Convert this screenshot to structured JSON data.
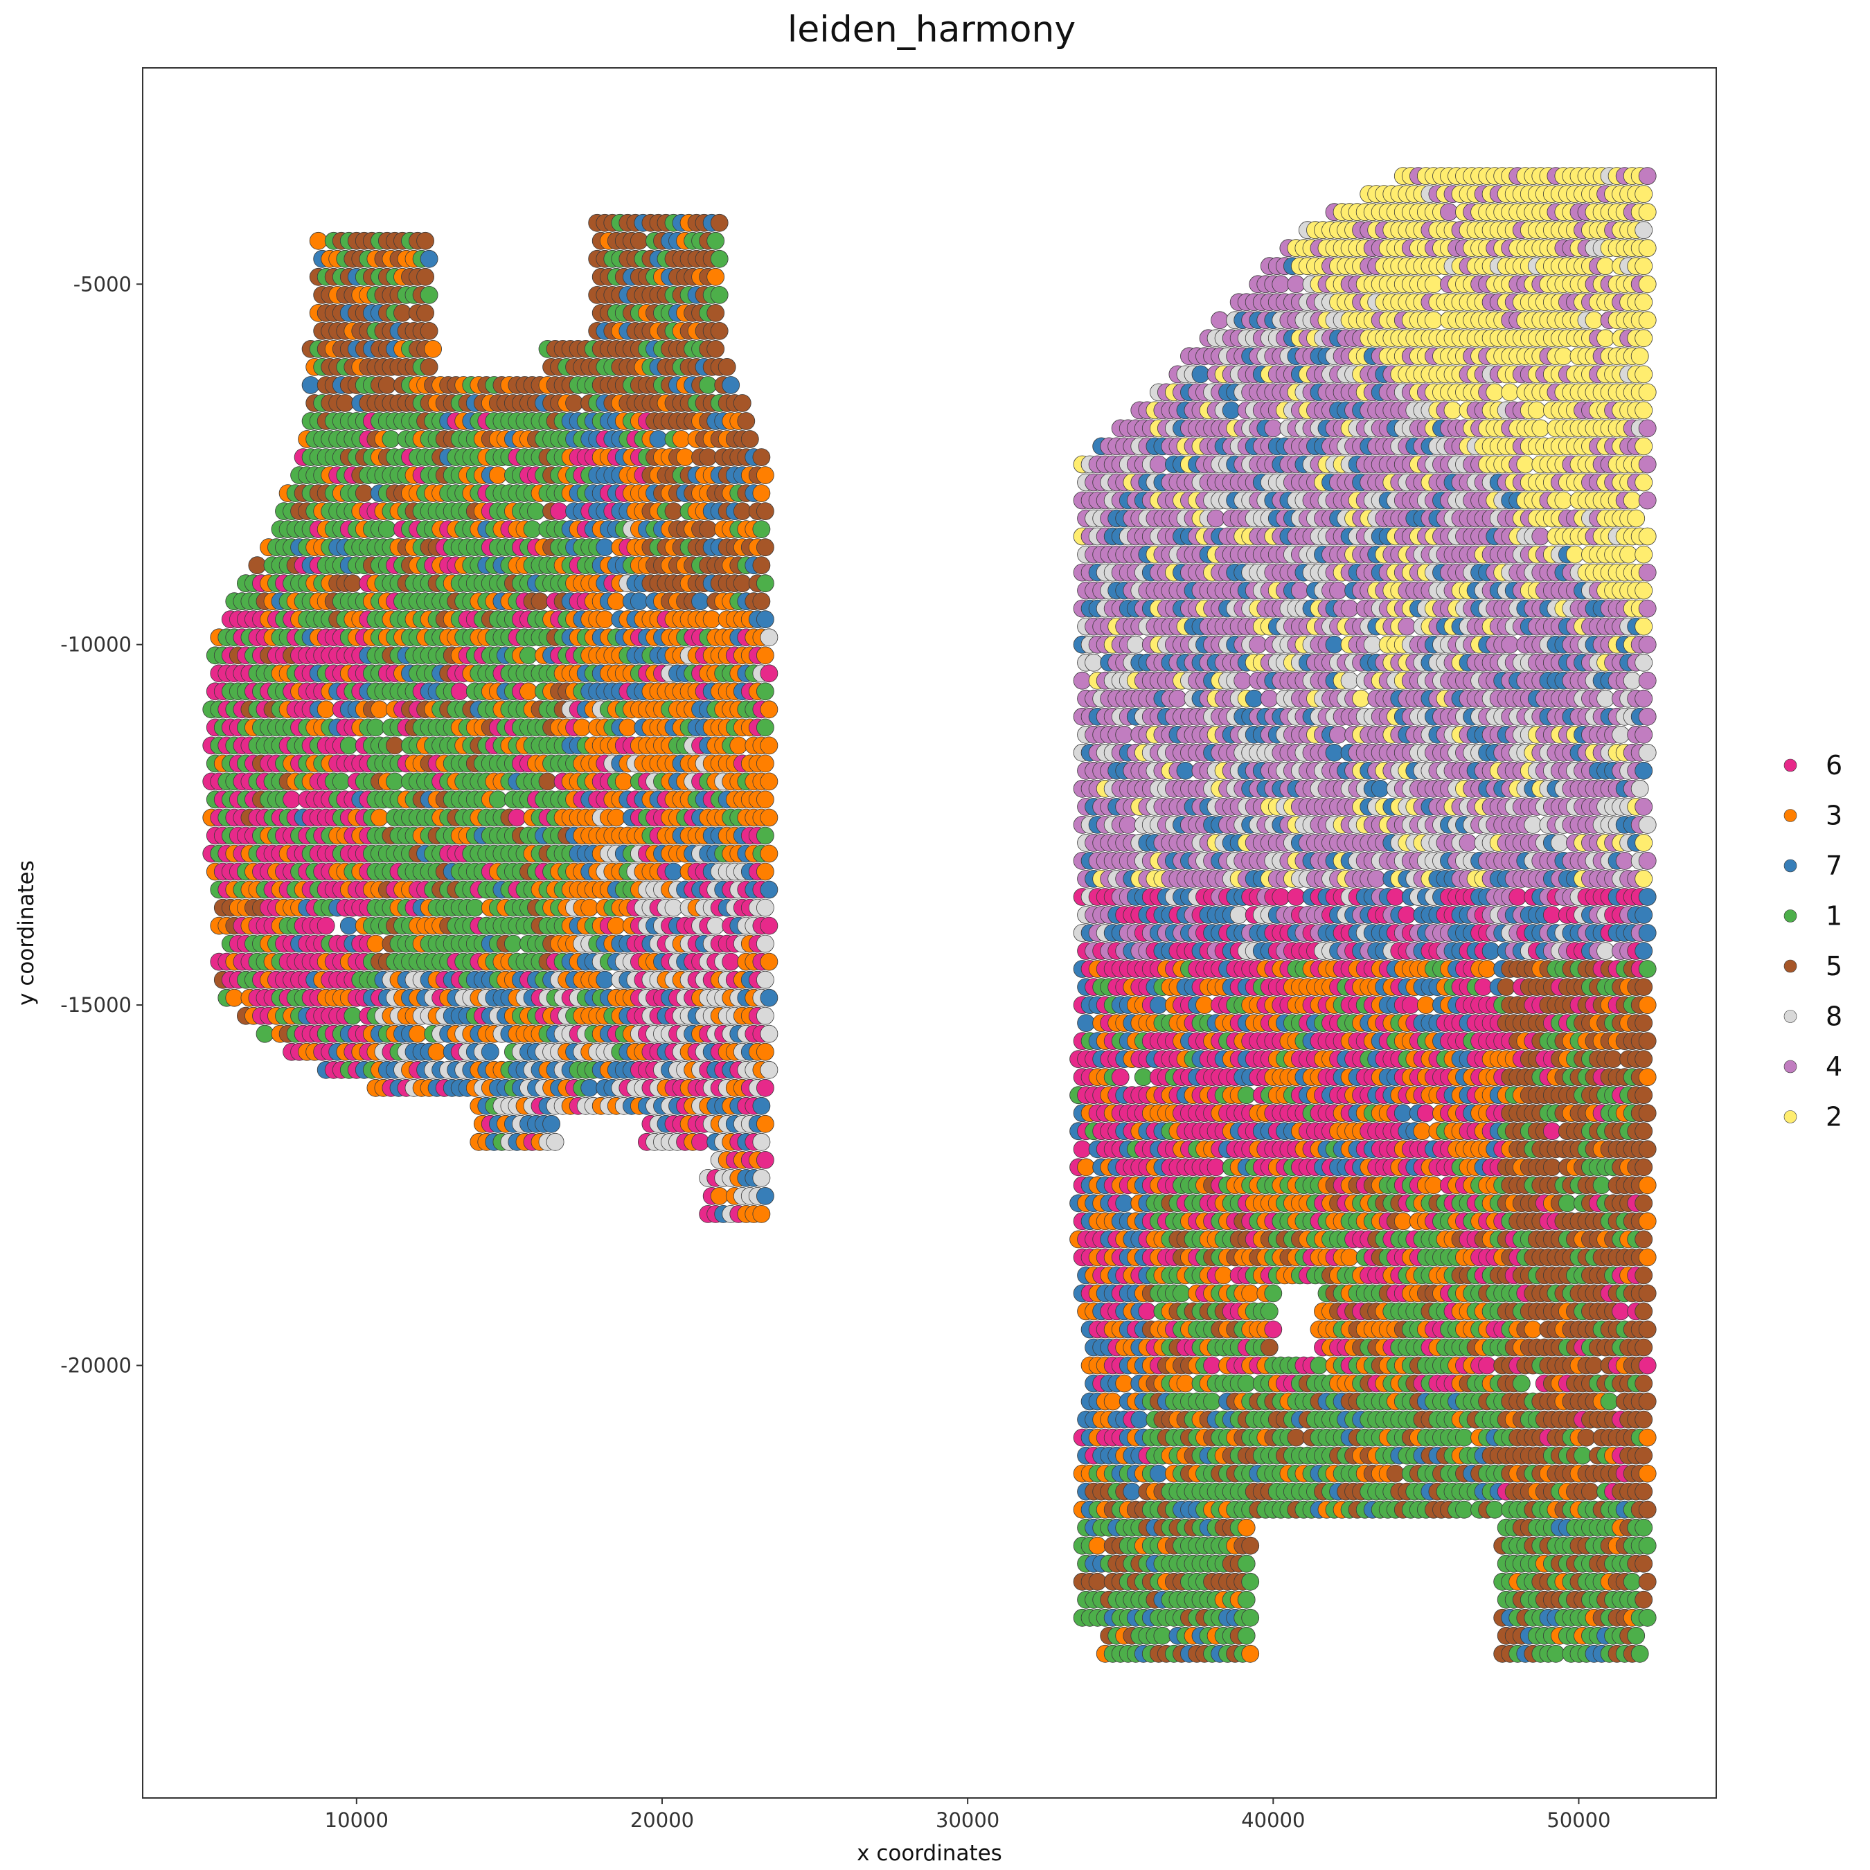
{
  "chart_data": {
    "type": "scatter",
    "title": "leiden_harmony",
    "xlabel": "x coordinates",
    "ylabel": "y coordinates",
    "xlim": [
      3000,
      54500
    ],
    "ylim": [
      -26000,
      -2000
    ],
    "x_ticks": [
      10000,
      20000,
      30000,
      40000,
      50000
    ],
    "y_ticks": [
      -5000,
      -10000,
      -15000,
      -20000
    ],
    "x_tick_labels": [
      "10000",
      "20000",
      "30000",
      "40000",
      "50000"
    ],
    "y_tick_labels": [
      "-5000",
      "-10000",
      "-15000",
      "-20000"
    ],
    "grid": false,
    "legend_position": "right",
    "legend": [
      {
        "label": "6",
        "color": "#E7298A"
      },
      {
        "label": "3",
        "color": "#FF7F00"
      },
      {
        "label": "7",
        "color": "#377EB8"
      },
      {
        "label": "1",
        "color": "#4DAF4A"
      },
      {
        "label": "5",
        "color": "#A65628"
      },
      {
        "label": "8",
        "color": "#D9D9D9"
      },
      {
        "label": "4",
        "color": "#C17DC0"
      },
      {
        "label": "2",
        "color": "#FFED6F"
      }
    ],
    "series": [
      {
        "name": "left section",
        "x_range": [
          5000,
          23500
        ],
        "y_range": [
          -18000,
          -4000
        ],
        "spot_spacing": 250
      },
      {
        "name": "right section",
        "x_range": [
          33500,
          52300
        ],
        "y_range": [
          -24000,
          -3500
        ],
        "spot_spacing": 250
      }
    ]
  }
}
